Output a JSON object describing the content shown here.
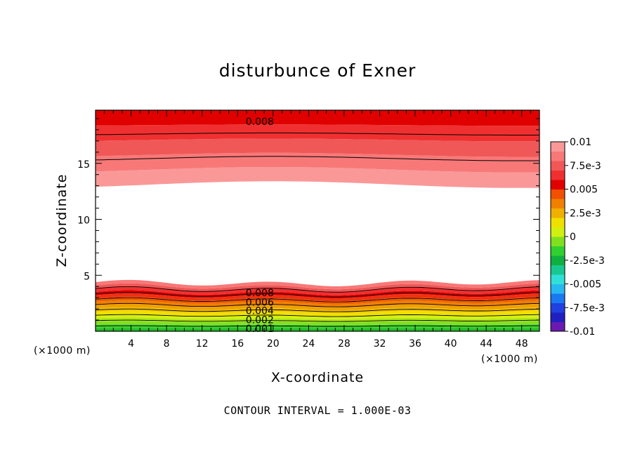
{
  "chart_data": {
    "type": "filled-contour",
    "title": "disturbunce of Exner",
    "xlabel": "X-coordinate",
    "ylabel": "Z-coordinate",
    "x_unit": "(×1000 m)",
    "y_unit": "(×1000 m)",
    "xlim": [
      0,
      50
    ],
    "ylim": [
      0,
      19.75
    ],
    "x_ticks": [
      4,
      8,
      12,
      16,
      20,
      24,
      28,
      32,
      36,
      40,
      44,
      48
    ],
    "y_ticks": [
      5,
      10,
      15
    ],
    "colorbar": {
      "range": [
        -0.01,
        0.01
      ],
      "labels": [
        "0.01",
        "7.5e-3",
        "0.005",
        "2.5e-3",
        "0",
        "-2.5e-3",
        "-0.005",
        "-7.5e-3",
        "-0.01"
      ],
      "colors": [
        "#6a1ab0",
        "#2020c0",
        "#2040e0",
        "#1a78f0",
        "#28b8f0",
        "#30e0d8",
        "#18c890",
        "#10b040",
        "#30d030",
        "#80e020",
        "#d0f010",
        "#f0e000",
        "#f0b000",
        "#f08000",
        "#f05000",
        "#e00000",
        "#f03030",
        "#f05858",
        "#f87878",
        "#fa9898"
      ]
    },
    "contour_labels": [
      "0.008",
      "0.008",
      "0.006",
      "0.004",
      "0.002",
      "0.001"
    ],
    "contour_interval": "CONTOUR INTERVAL = 1.000E-03",
    "upper_region": {
      "z_bottom_range": [
        12.8,
        13.4
      ],
      "z_top": 19.75,
      "colors": [
        "#fa9898",
        "#f87878",
        "#f05858",
        "#f03030",
        "#e00000"
      ]
    },
    "lower_region": {
      "z_top_range": [
        4.0,
        4.6
      ],
      "z_bottom": 0,
      "colors": [
        "#20c020",
        "#40d030",
        "#80e020",
        "#b0e818",
        "#d8f010",
        "#f0e000",
        "#f0c000",
        "#f0a000",
        "#f08000",
        "#f06000",
        "#f03010",
        "#e00000",
        "#f03030",
        "#f05858",
        "#f87878"
      ]
    }
  },
  "labels": {
    "x_unit_left": "(×1000 m)",
    "x_unit_right": "(×1000 m)",
    "footer": "CONTOUR INTERVAL = 1.000E-03"
  }
}
